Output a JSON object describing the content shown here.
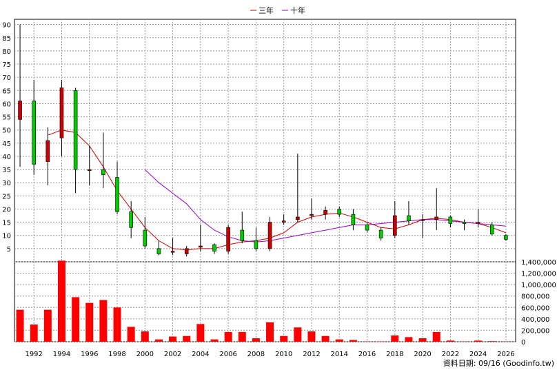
{
  "legend": [
    {
      "label": "三年",
      "color": "#cc0000"
    },
    {
      "label": "十年",
      "color": "#9900cc"
    }
  ],
  "footer": "資料日期: 09/16  (Goodinfo.tw)",
  "colors": {
    "up": "#cc0000",
    "down": "#00cc00",
    "volume": "#ff0000",
    "grid": "#999999"
  },
  "chart_data": {
    "type": "candlestick-with-volume",
    "x_range": [
      1990.6,
      2026.7
    ],
    "price_axis": {
      "ticks": [
        5,
        10,
        15,
        20,
        25,
        30,
        35,
        40,
        45,
        50,
        55,
        60,
        65,
        70,
        75,
        80,
        85,
        90
      ],
      "range": [
        0,
        92
      ]
    },
    "volume_axis": {
      "ticks": [
        0,
        200000,
        400000,
        600000,
        800000,
        1000000,
        1200000,
        1400000
      ],
      "tick_labels": [
        "0",
        "200,000",
        "400,000",
        "600,000",
        "800,000",
        "1,000,000",
        "1,200,000",
        "1,400,000"
      ],
      "range": [
        0,
        1400000
      ]
    },
    "x_ticks": [
      1992,
      1994,
      1996,
      1998,
      2000,
      2002,
      2004,
      2006,
      2008,
      2010,
      2012,
      2014,
      2016,
      2018,
      2020,
      2022,
      2024,
      2026
    ],
    "candles": [
      {
        "year": 1991,
        "open": 54,
        "close": 61,
        "high": 90,
        "low": 36
      },
      {
        "year": 1992,
        "open": 61,
        "close": 37,
        "high": 69,
        "low": 33
      },
      {
        "year": 1993,
        "open": 38,
        "close": 46,
        "high": 51,
        "low": 29
      },
      {
        "year": 1994,
        "open": 47,
        "close": 66,
        "high": 69,
        "low": 40
      },
      {
        "year": 1995,
        "open": 65,
        "close": 35,
        "high": 66,
        "low": 26
      },
      {
        "year": 1996,
        "open": 35,
        "close": 35,
        "high": 44,
        "low": 29
      },
      {
        "year": 1997,
        "open": 35,
        "close": 33,
        "high": 49,
        "low": 28
      },
      {
        "year": 1998,
        "open": 32,
        "close": 19,
        "high": 38,
        "low": 18
      },
      {
        "year": 1999,
        "open": 19,
        "close": 13,
        "high": 23,
        "low": 9
      },
      {
        "year": 2000,
        "open": 12,
        "close": 6,
        "high": 17,
        "low": 5
      },
      {
        "year": 2001,
        "open": 5,
        "close": 3,
        "high": 8,
        "low": 2.5
      },
      {
        "year": 2002,
        "open": 4,
        "close": 4,
        "high": 9,
        "low": 2.5
      },
      {
        "year": 2003,
        "open": 3,
        "close": 5,
        "high": 6,
        "low": 2
      },
      {
        "year": 2004,
        "open": 5.5,
        "close": 6,
        "high": 14,
        "low": 4
      },
      {
        "year": 2005,
        "open": 6.5,
        "close": 4,
        "high": 7,
        "low": 3
      },
      {
        "year": 2006,
        "open": 4,
        "close": 13,
        "high": 14,
        "low": 3
      },
      {
        "year": 2007,
        "open": 12,
        "close": 8,
        "high": 19,
        "low": 7
      },
      {
        "year": 2008,
        "open": 8,
        "close": 5,
        "high": 13,
        "low": 4
      },
      {
        "year": 2009,
        "open": 5,
        "close": 15,
        "high": 17,
        "low": 4
      },
      {
        "year": 2010,
        "open": 15,
        "close": 15.5,
        "high": 18,
        "low": 14
      },
      {
        "year": 2011,
        "open": 16,
        "close": 17,
        "high": 41,
        "low": 15
      },
      {
        "year": 2012,
        "open": 17.5,
        "close": 18,
        "high": 24,
        "low": 16
      },
      {
        "year": 2013,
        "open": 18,
        "close": 19.5,
        "high": 21,
        "low": 16
      },
      {
        "year": 2014,
        "open": 20,
        "close": 18,
        "high": 21,
        "low": 17
      },
      {
        "year": 2015,
        "open": 18,
        "close": 14,
        "high": 20,
        "low": 12
      },
      {
        "year": 2016,
        "open": 14,
        "close": 12,
        "high": 15,
        "low": 11
      },
      {
        "year": 2017,
        "open": 12,
        "close": 9,
        "high": 13,
        "low": 8
      },
      {
        "year": 2018,
        "open": 10,
        "close": 17.5,
        "high": 23,
        "low": 9
      },
      {
        "year": 2019,
        "open": 17.5,
        "close": 15.5,
        "high": 23,
        "low": 14
      },
      {
        "year": 2020,
        "open": 16,
        "close": 16,
        "high": 18,
        "low": 9
      },
      {
        "year": 2021,
        "open": 16,
        "close": 17,
        "high": 28,
        "low": 12
      },
      {
        "year": 2022,
        "open": 17,
        "close": 14.5,
        "high": 17.5,
        "low": 13
      },
      {
        "year": 2023,
        "open": 15,
        "close": 14.5,
        "high": 16,
        "low": 12
      },
      {
        "year": 2024,
        "open": 15,
        "close": 15,
        "high": 20,
        "low": 13
      },
      {
        "year": 2025,
        "open": 14,
        "close": 10.5,
        "high": 15,
        "low": 10
      },
      {
        "year": 2026,
        "open": 10,
        "close": 8.5,
        "high": 10.5,
        "low": 8
      }
    ],
    "volume": [
      {
        "year": 1991,
        "value": 560000
      },
      {
        "year": 1992,
        "value": 300000
      },
      {
        "year": 1993,
        "value": 560000
      },
      {
        "year": 1994,
        "value": 1420000
      },
      {
        "year": 1995,
        "value": 780000
      },
      {
        "year": 1996,
        "value": 680000
      },
      {
        "year": 1997,
        "value": 730000
      },
      {
        "year": 1998,
        "value": 600000
      },
      {
        "year": 1999,
        "value": 260000
      },
      {
        "year": 2000,
        "value": 180000
      },
      {
        "year": 2001,
        "value": 40000
      },
      {
        "year": 2002,
        "value": 90000
      },
      {
        "year": 2003,
        "value": 100000
      },
      {
        "year": 2004,
        "value": 310000
      },
      {
        "year": 2005,
        "value": 40000
      },
      {
        "year": 2006,
        "value": 170000
      },
      {
        "year": 2007,
        "value": 170000
      },
      {
        "year": 2008,
        "value": 60000
      },
      {
        "year": 2009,
        "value": 340000
      },
      {
        "year": 2010,
        "value": 100000
      },
      {
        "year": 2011,
        "value": 250000
      },
      {
        "year": 2012,
        "value": 180000
      },
      {
        "year": 2013,
        "value": 100000
      },
      {
        "year": 2014,
        "value": 40000
      },
      {
        "year": 2015,
        "value": 30000
      },
      {
        "year": 2016,
        "value": 5000
      },
      {
        "year": 2017,
        "value": 5000
      },
      {
        "year": 2018,
        "value": 110000
      },
      {
        "year": 2019,
        "value": 80000
      },
      {
        "year": 2020,
        "value": 60000
      },
      {
        "year": 2021,
        "value": 170000
      },
      {
        "year": 2022,
        "value": 20000
      },
      {
        "year": 2023,
        "value": 5000
      },
      {
        "year": 2024,
        "value": 20000
      },
      {
        "year": 2025,
        "value": 10000
      },
      {
        "year": 2026,
        "value": 5000
      }
    ],
    "series": [
      {
        "name": "三年",
        "color": "#cc0000",
        "points": [
          [
            1993,
            48
          ],
          [
            1994,
            50
          ],
          [
            1995,
            49
          ],
          [
            1996,
            44
          ],
          [
            1997,
            36
          ],
          [
            1998,
            27
          ],
          [
            1999,
            20
          ],
          [
            2000,
            13
          ],
          [
            2001,
            8
          ],
          [
            2002,
            5
          ],
          [
            2003,
            4.5
          ],
          [
            2004,
            5
          ],
          [
            2005,
            5
          ],
          [
            2006,
            6.5
          ],
          [
            2007,
            7.5
          ],
          [
            2008,
            8
          ],
          [
            2009,
            9
          ],
          [
            2010,
            11
          ],
          [
            2011,
            15
          ],
          [
            2012,
            17
          ],
          [
            2013,
            18
          ],
          [
            2014,
            18.5
          ],
          [
            2015,
            17
          ],
          [
            2016,
            15
          ],
          [
            2017,
            13
          ],
          [
            2018,
            12.5
          ],
          [
            2019,
            14
          ],
          [
            2020,
            16
          ],
          [
            2021,
            16.5
          ],
          [
            2022,
            16
          ],
          [
            2023,
            15
          ],
          [
            2024,
            14.5
          ],
          [
            2025,
            13
          ],
          [
            2026,
            11
          ]
        ]
      },
      {
        "name": "十年",
        "color": "#9900cc",
        "points": [
          [
            2000,
            35
          ],
          [
            2001,
            30
          ],
          [
            2002,
            26
          ],
          [
            2003,
            22
          ],
          [
            2004,
            16
          ],
          [
            2005,
            12
          ],
          [
            2006,
            9.5
          ],
          [
            2007,
            8
          ],
          [
            2008,
            7.5
          ],
          [
            2009,
            8
          ],
          [
            2010,
            9
          ],
          [
            2011,
            10
          ],
          [
            2012,
            11
          ],
          [
            2013,
            12
          ],
          [
            2014,
            13
          ],
          [
            2015,
            14
          ],
          [
            2016,
            14
          ],
          [
            2017,
            14.5
          ],
          [
            2018,
            15
          ],
          [
            2019,
            15.5
          ],
          [
            2020,
            16
          ],
          [
            2021,
            16
          ],
          [
            2022,
            15.5
          ],
          [
            2023,
            15
          ],
          [
            2024,
            14.5
          ],
          [
            2025,
            14
          ],
          [
            2026,
            13.5
          ]
        ]
      }
    ]
  }
}
